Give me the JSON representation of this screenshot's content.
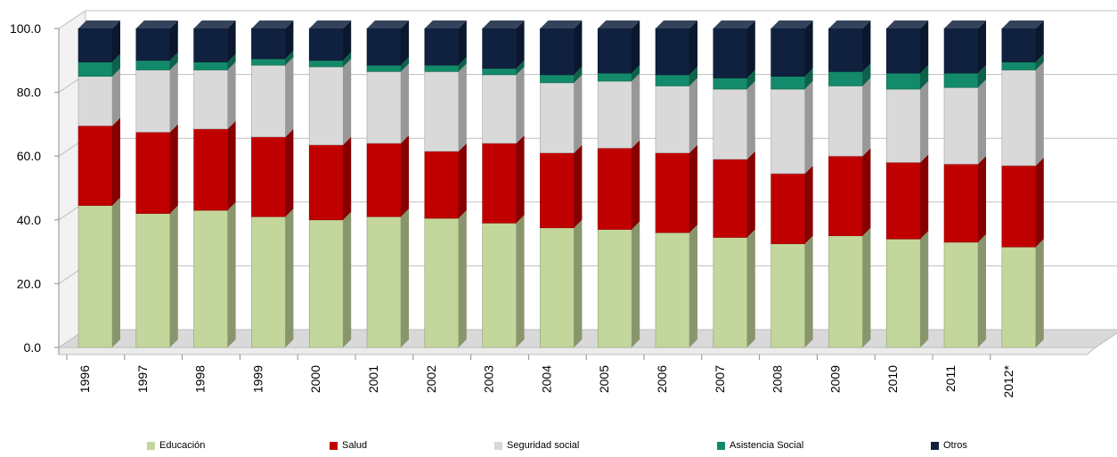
{
  "chart_data": {
    "type": "bar",
    "stacked": true,
    "categories": [
      "1996",
      "1997",
      "1998",
      "1999",
      "2000",
      "2001",
      "2002",
      "2003",
      "2004",
      "2005",
      "2006",
      "2007",
      "2008",
      "2009",
      "2010",
      "2011",
      "2012*"
    ],
    "series": [
      {
        "name": "Educación",
        "color": "#c3d69b",
        "values": [
          44.5,
          42.0,
          43.0,
          41.0,
          40.0,
          41.0,
          40.5,
          39.0,
          37.5,
          37.0,
          36.0,
          34.5,
          32.5,
          35.0,
          34.0,
          33.0,
          31.5
        ]
      },
      {
        "name": "Salud",
        "color": "#c00000",
        "values": [
          25.0,
          25.5,
          25.5,
          25.0,
          23.5,
          23.0,
          21.0,
          25.0,
          23.5,
          25.5,
          25.0,
          24.5,
          22.0,
          25.0,
          24.0,
          24.5,
          25.5
        ]
      },
      {
        "name": "Seguridad social",
        "color": "#d9d9d9",
        "values": [
          15.5,
          19.5,
          18.5,
          22.5,
          24.5,
          22.5,
          25.0,
          21.5,
          22.0,
          21.0,
          21.0,
          22.0,
          26.5,
          22.0,
          23.0,
          24.0,
          30.0
        ]
      },
      {
        "name": "Asistencia Social",
        "color": "#138a6a",
        "values": [
          4.5,
          3.0,
          2.5,
          2.0,
          2.0,
          2.0,
          2.0,
          2.0,
          2.5,
          2.5,
          3.5,
          3.5,
          4.0,
          4.5,
          5.0,
          4.5,
          2.5
        ]
      },
      {
        "name": "Otros",
        "color": "#10213f",
        "values": [
          10.5,
          10.0,
          10.5,
          9.5,
          10.0,
          11.5,
          11.5,
          12.5,
          14.5,
          14.0,
          14.5,
          15.5,
          15.0,
          13.5,
          14.0,
          14.0,
          10.5
        ]
      }
    ],
    "yticks": [
      "0.0",
      "20.0",
      "40.0",
      "60.0",
      "80.0",
      "100.0"
    ],
    "ylim": [
      0,
      100
    ],
    "grid": true,
    "legend_position": "bottom",
    "title": "",
    "xlabel": "",
    "ylabel": ""
  }
}
